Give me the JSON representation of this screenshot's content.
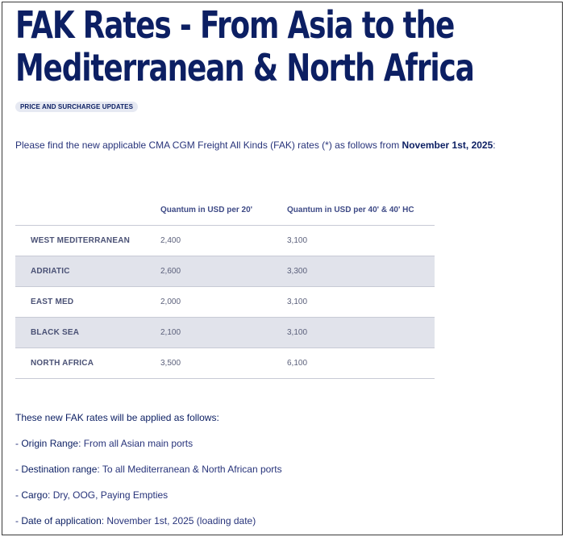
{
  "page": {
    "title": "FAK Rates - From Asia to the Mediterranean & North Africa",
    "tag": "PRICE AND SURCHARGE UPDATES",
    "intro": {
      "text": "Please find the new applicable CMA CGM Freight All Kinds (FAK) rates (*) as follows from ",
      "date": "November 1st, 2025",
      "end": ":"
    }
  },
  "table": {
    "headers": [
      "",
      "Quantum in USD per 20'",
      "Quantum in USD per 40' & 40' HC"
    ],
    "rows": [
      {
        "dest": "WEST MEDITERRANEAN",
        "q20": "2,400",
        "q40": "3,100"
      },
      {
        "dest": "ADRIATIC",
        "q20": "2,600",
        "q40": "3,300"
      },
      {
        "dest": "EAST MED",
        "q20": "2,000",
        "q40": "3,100"
      },
      {
        "dest": "BLACK SEA",
        "q20": "2,100",
        "q40": "3,100"
      },
      {
        "dest": "NORTH AFRICA",
        "q20": "3,500",
        "q40": "6,100"
      }
    ]
  },
  "notes": {
    "lead": "These new FAK rates will be applied as follows:",
    "items": [
      {
        "label": "Origin Range",
        "text": ": From all Asian main ports"
      },
      {
        "label": "Destination range",
        "text": ": To all Mediterranean & North African ports"
      },
      {
        "label": "Cargo",
        "text": ": Dry, OOG, Paying Empties"
      },
      {
        "label": "Date of application",
        "text": ": November 1st, 2025 (loading date)"
      }
    ]
  }
}
